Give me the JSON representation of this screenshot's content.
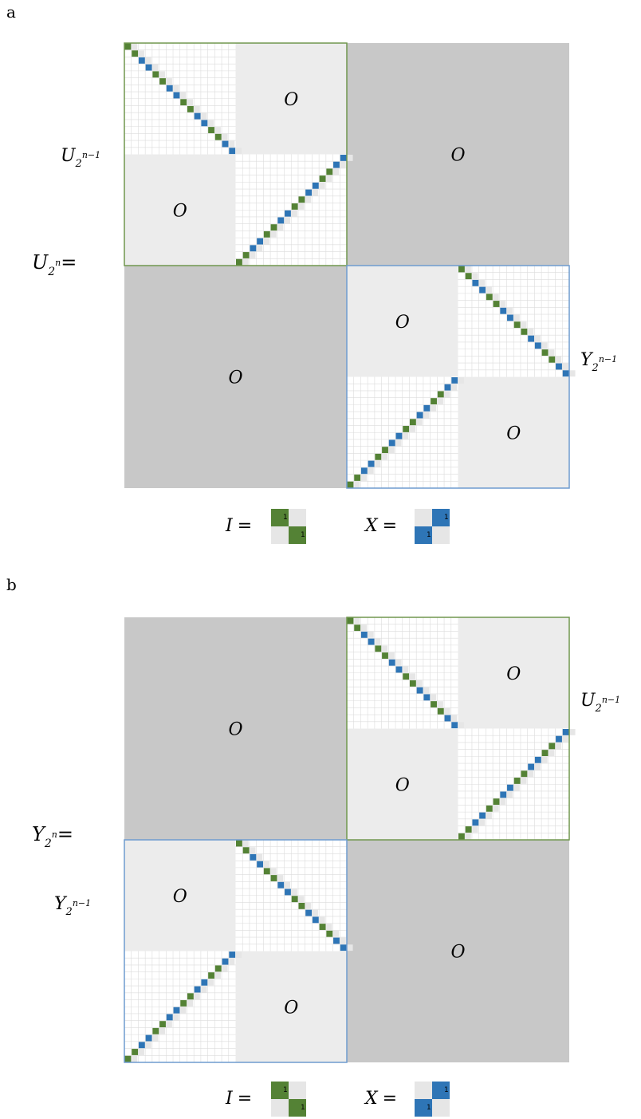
{
  "colors": {
    "outer_zero": "#c8c8c8",
    "inner_zero": "#ececec",
    "identity_green": "#548235",
    "pauli_x_blue": "#2e75b6",
    "cell_gray": "#e6e6e6",
    "grid_line": "#dcdcdc",
    "border_green": "#70974e",
    "border_blue": "#6f9ccf"
  },
  "zero_label": "O",
  "one_label": "1",
  "panel_a": {
    "label": "a",
    "lhs": {
      "base": "U",
      "exp": "n",
      "eq": "="
    },
    "top_block": {
      "base": "U",
      "exp": "n−1"
    },
    "bottom_block": {
      "base": "Y",
      "exp": "n−1"
    }
  },
  "panel_b": {
    "label": "b",
    "lhs": {
      "base": "Y",
      "exp": "n",
      "eq": "="
    },
    "top_block": {
      "base": "U",
      "exp": "n−1"
    },
    "bottom_block": {
      "base": "Y",
      "exp": "n−1"
    }
  },
  "legend": {
    "identity": {
      "symbol": "I",
      "eq": "="
    },
    "pauli_x": {
      "symbol": "X",
      "eq": "="
    }
  }
}
